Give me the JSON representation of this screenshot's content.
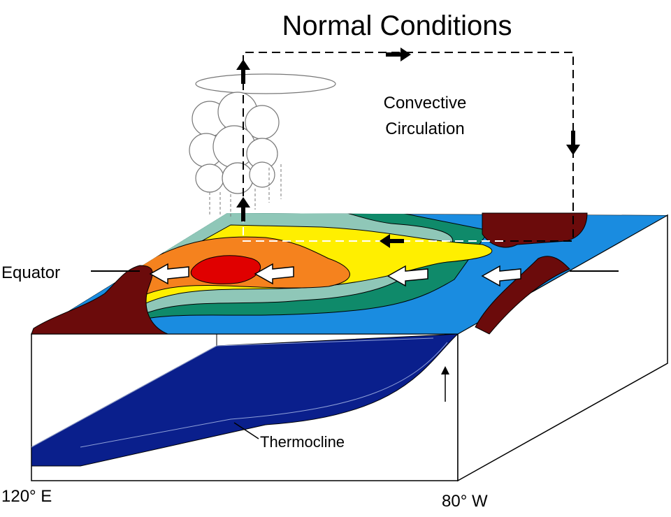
{
  "title": "Normal Conditions",
  "circulation_label": {
    "lines": [
      "Convective",
      "Circulation"
    ]
  },
  "labels": {
    "equator": "Equator",
    "thermocline": "Thermocline",
    "west": "120° E",
    "east": "80° W"
  }
}
